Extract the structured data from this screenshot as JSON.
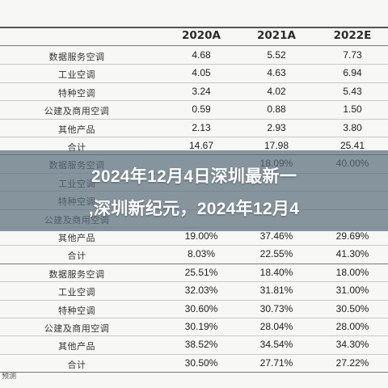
{
  "table": {
    "columns": [
      "2020A",
      "2021A",
      "2022E"
    ],
    "section1": [
      {
        "label": "数据服务空调",
        "values": [
          "4.68",
          "5.52",
          "7.73"
        ]
      },
      {
        "label": "工业空调",
        "values": [
          "4.05",
          "4.63",
          "6.94"
        ]
      },
      {
        "label": "特种空调",
        "values": [
          "3.24",
          "4.02",
          "5.43"
        ]
      },
      {
        "label": "公建及商用空调",
        "values": [
          "0.59",
          "0.88",
          "1.50"
        ]
      },
      {
        "label": "其他产品",
        "values": [
          "2.13",
          "2.93",
          "3.80"
        ]
      },
      {
        "label": "合计",
        "values": [
          "14.67",
          "17.98",
          "25.41"
        ]
      }
    ],
    "section2": [
      {
        "label": "数据服务空调",
        "values": [
          "",
          "18.09%",
          "40.00%"
        ]
      },
      {
        "label": "工业空调",
        "values": [
          "",
          "",
          ""
        ]
      },
      {
        "label": "特种空调",
        "values": [
          "",
          "",
          ""
        ]
      },
      {
        "label": "公建及商用空调",
        "values": [
          "",
          "",
          ""
        ]
      },
      {
        "label": "其他产品",
        "values": [
          "19.00%",
          "37.46%",
          "29.69%"
        ]
      },
      {
        "label": "合计",
        "values": [
          "8.03%",
          "22.55%",
          "41.30%"
        ]
      }
    ],
    "section3": [
      {
        "label": "数据服务空调",
        "values": [
          "25.51%",
          "18.40%",
          "18.00%"
        ]
      },
      {
        "label": "工业空调",
        "values": [
          "32.03%",
          "31.81%",
          "31.00%"
        ]
      },
      {
        "label": "特种空调",
        "values": [
          "30.60%",
          "30.73%",
          "30.50%"
        ]
      },
      {
        "label": "公建及商用空调",
        "values": [
          "30.19%",
          "28.04%",
          "28.00%"
        ]
      },
      {
        "label": "其他产品",
        "values": [
          "38.52%",
          "34.54%",
          "34.30%"
        ]
      },
      {
        "label": "合计",
        "values": [
          "30.50%",
          "27.71%",
          "27.22%"
        ]
      }
    ],
    "footer": "预测"
  },
  "banner": {
    "line1": "2024年12月4日深圳最新一",
    "line2": ",深圳新纪元，2024年12月4"
  }
}
